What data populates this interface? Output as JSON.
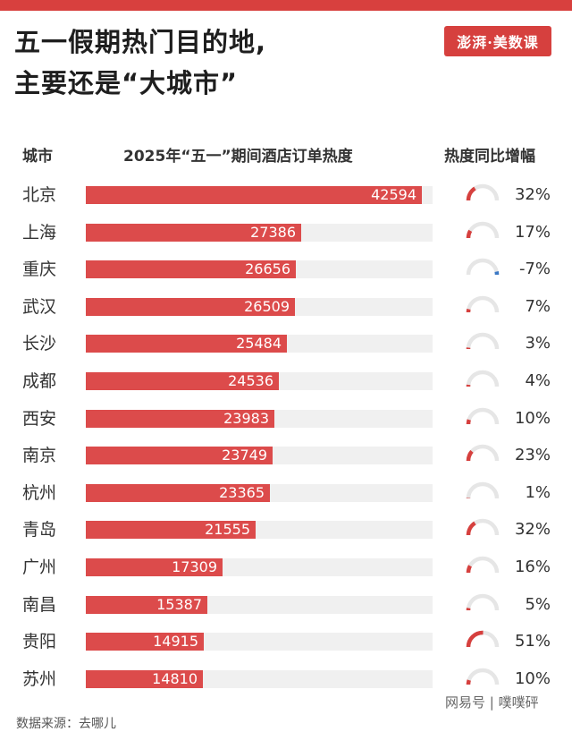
{
  "header": {
    "title_line1": "五一假期热门目的地,",
    "title_line2": "主要还是“大城市”",
    "logo_text": "澎湃·美数课"
  },
  "columns": {
    "city": "城市",
    "bar": "2025年“五一”期间酒店订单热度",
    "yoy": "热度同比增幅"
  },
  "colors": {
    "bar": "#dc4b4b",
    "track": "#f0f0f0",
    "gauge_up": "#d6403e",
    "gauge_down": "#3a78c4",
    "gauge_track": "#e6e6e6"
  },
  "footer": {
    "source": "数据来源：去哪儿",
    "watermark": "网易号 | 噗噗砰"
  },
  "chart_data": {
    "type": "bar",
    "title": "2025年“五一”期间酒店订单热度",
    "xlim": [
      0,
      44000
    ],
    "categories": [
      "北京",
      "上海",
      "重庆",
      "武汉",
      "长沙",
      "成都",
      "西安",
      "南京",
      "杭州",
      "青岛",
      "广州",
      "南昌",
      "贵阳",
      "苏州"
    ],
    "series": [
      {
        "values": [
          42594,
          27386,
          26656,
          26509,
          25484,
          24536,
          23983,
          23749,
          23365,
          21555,
          17309,
          15387,
          14915,
          14810
        ]
      },
      {
        "name": "热度同比增幅",
        "unit": "%",
        "values": [
          32,
          17,
          -7,
          7,
          3,
          4,
          10,
          23,
          1,
          32,
          16,
          5,
          51,
          10
        ]
      }
    ]
  }
}
